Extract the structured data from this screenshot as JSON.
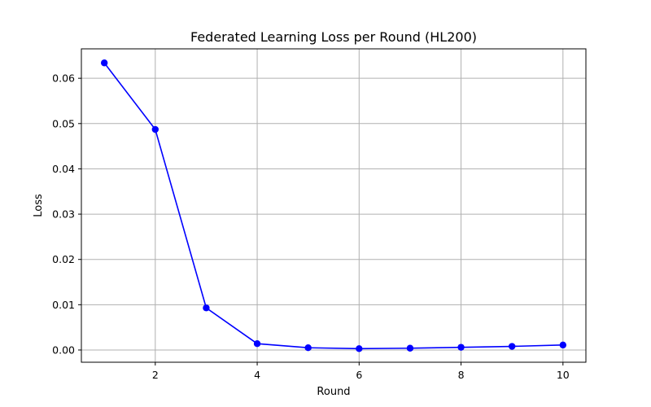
{
  "chart_data": {
    "type": "line",
    "title": "Federated Learning Loss per Round (HL200)",
    "xlabel": "Round",
    "ylabel": "Loss",
    "x": [
      1,
      2,
      3,
      4,
      5,
      6,
      7,
      8,
      9,
      10
    ],
    "series": [
      {
        "values": [
          0.0634,
          0.0487,
          0.0093,
          0.0014,
          0.0005,
          0.0003,
          0.0004,
          0.0006,
          0.0008,
          0.0011
        ],
        "color": "#0000ff",
        "marker": "circle"
      }
    ],
    "xlim": [
      0.55,
      10.45
    ],
    "ylim": [
      -0.0027,
      0.0665
    ],
    "x_ticks": [
      2,
      4,
      6,
      8,
      10
    ],
    "x_tick_labels": [
      "2",
      "4",
      "6",
      "8",
      "10"
    ],
    "y_ticks": [
      0.0,
      0.01,
      0.02,
      0.03,
      0.04,
      0.05,
      0.06
    ],
    "y_tick_labels": [
      "0.00",
      "0.01",
      "0.02",
      "0.03",
      "0.04",
      "0.05",
      "0.06"
    ],
    "grid": true
  }
}
